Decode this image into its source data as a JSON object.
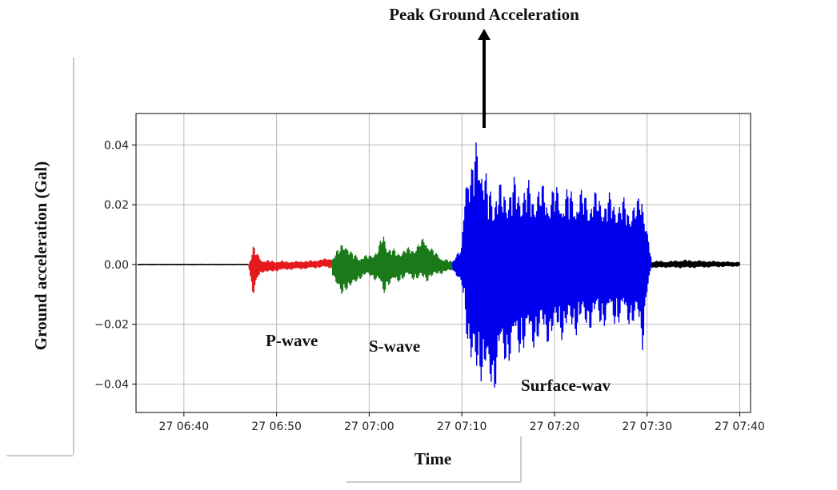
{
  "chart_data": {
    "type": "line",
    "title": "Peak Ground Acceleration",
    "xlabel": "Time",
    "ylabel": "Ground acceleration (Gal)",
    "x_unit": "time of day (day 27)",
    "xlim": [
      "27 06:34:50",
      "27 07:41:10"
    ],
    "ylim": [
      -0.0495,
      0.0505
    ],
    "x_tick_labels": [
      "27 06:40",
      "27 06:50",
      "27 07:00",
      "27 07:10",
      "27 07:20",
      "27 07:30",
      "27 07:40"
    ],
    "y_tick_labels": [
      "0.04",
      "0.02",
      "0.00",
      "−0.02",
      "−0.04"
    ],
    "y_ticks": [
      0.04,
      0.02,
      0.0,
      -0.02,
      -0.04
    ],
    "grid": true,
    "series": [
      {
        "name": "",
        "color": "#000000",
        "x": [
          "27 06:35:00",
          "27 06:47:00"
        ],
        "envelope_max": [
          0.0001,
          0.0001
        ],
        "envelope_min": [
          -0.0001,
          -0.0001
        ]
      },
      {
        "name": "",
        "color": "#e41a1c",
        "x": [
          "27 06:47:00",
          "27 06:47:30",
          "27 06:48:00",
          "27 06:48:30",
          "27 06:49:00",
          "27 06:50:00",
          "27 06:51:00",
          "27 06:52:00",
          "27 06:53:00",
          "27 06:54:00",
          "27 06:55:00",
          "27 06:56:00"
        ],
        "envelope_max": [
          0.0002,
          0.0068,
          0.0035,
          0.0015,
          0.0014,
          0.0012,
          0.0011,
          0.001,
          0.0012,
          0.0013,
          0.0018,
          0.0022
        ],
        "envelope_min": [
          -0.0002,
          -0.0125,
          -0.0045,
          -0.0025,
          -0.0028,
          -0.0022,
          -0.0018,
          -0.0016,
          -0.0015,
          -0.0012,
          -0.001,
          -0.0012
        ]
      },
      {
        "name": "",
        "color": "#1a7a1a",
        "x": [
          "27 06:56:00",
          "27 06:57:00",
          "27 06:57:30",
          "27 06:58:00",
          "27 06:59:00",
          "27 07:00:00",
          "27 07:01:00",
          "27 07:01:30",
          "27 07:02:00",
          "27 07:03:00",
          "27 07:04:00",
          "27 07:05:00",
          "27 07:06:00",
          "27 07:07:00",
          "27 07:08:00",
          "27 07:09:00"
        ],
        "envelope_max": [
          0.0028,
          0.007,
          0.009,
          0.0045,
          0.0028,
          0.0032,
          0.0055,
          0.0118,
          0.0065,
          0.0045,
          0.0055,
          0.0062,
          0.0095,
          0.0045,
          0.002,
          0.001
        ],
        "envelope_min": [
          -0.003,
          -0.012,
          -0.0085,
          -0.0085,
          -0.0048,
          -0.0038,
          -0.0062,
          -0.0113,
          -0.0072,
          -0.0062,
          -0.0046,
          -0.0052,
          -0.0062,
          -0.0042,
          -0.0028,
          -0.002
        ]
      },
      {
        "name": "",
        "color": "#0000ee",
        "x": [
          "27 07:09:00",
          "27 07:10:00",
          "27 07:10:30",
          "27 07:11:00",
          "27 07:11:30",
          "27 07:12:00",
          "27 07:12:30",
          "27 07:13:00",
          "27 07:13:30",
          "27 07:14:00",
          "27 07:14:30",
          "27 07:15:00",
          "27 07:16:00",
          "27 07:17:00",
          "27 07:18:00",
          "27 07:20:00",
          "27 07:22:00",
          "27 07:24:00",
          "27 07:26:00",
          "27 07:28:00",
          "27 07:29:00",
          "27 07:29:30",
          "27 07:30:00",
          "27 07:30:30"
        ],
        "envelope_max": [
          0.0015,
          0.006,
          0.04,
          0.032,
          0.044,
          0.0455,
          0.032,
          0.0285,
          0.032,
          0.0278,
          0.0275,
          0.03,
          0.029,
          0.0285,
          0.0278,
          0.027,
          0.026,
          0.025,
          0.024,
          0.022,
          0.022,
          0.0295,
          0.012,
          0.001
        ],
        "envelope_min": [
          -0.0015,
          -0.008,
          -0.023,
          -0.039,
          -0.041,
          -0.0385,
          -0.043,
          -0.043,
          -0.044,
          -0.0355,
          -0.035,
          -0.034,
          -0.031,
          -0.0295,
          -0.028,
          -0.026,
          -0.024,
          -0.022,
          -0.021,
          -0.0205,
          -0.0225,
          -0.0295,
          -0.01,
          -0.001
        ]
      },
      {
        "name": "",
        "color": "#000000",
        "x": [
          "27 07:30:30",
          "27 07:31:00",
          "27 07:32:00",
          "27 07:34:00",
          "27 07:36:00",
          "27 07:38:00",
          "27 07:40:00"
        ],
        "envelope_max": [
          0.001,
          0.0012,
          0.001,
          0.0015,
          0.0012,
          0.001,
          0.0008
        ],
        "envelope_min": [
          -0.001,
          -0.0012,
          -0.001,
          -0.0012,
          -0.001,
          -0.0008,
          -0.0006
        ]
      }
    ],
    "annotations": [
      {
        "label": "P-wave"
      },
      {
        "label": "S-wave"
      },
      {
        "label": "Surface-wav"
      }
    ]
  }
}
